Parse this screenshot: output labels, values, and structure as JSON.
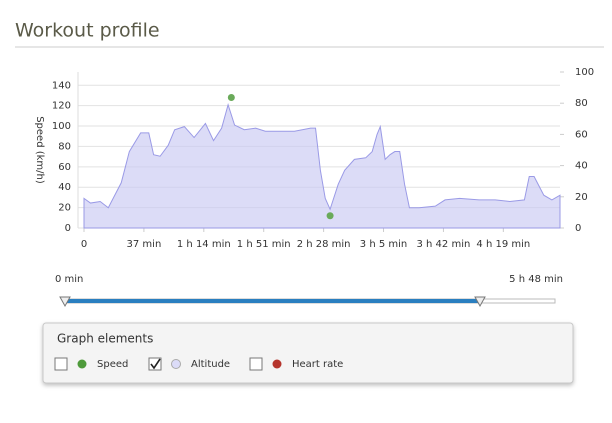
{
  "header": {
    "title": "Workout profile"
  },
  "chart_data": {
    "type": "area",
    "y_label": "Speed (km/h)",
    "x": [
      0,
      4,
      10,
      15,
      19,
      23,
      28,
      35,
      40,
      43,
      47,
      52,
      56,
      62,
      68,
      75,
      80,
      85,
      89,
      93,
      99,
      106,
      112,
      121,
      130,
      140,
      143,
      146,
      149,
      152,
      157,
      161,
      167,
      174,
      178,
      181,
      183,
      186,
      189,
      192,
      195,
      198,
      201,
      207,
      217,
      223,
      232,
      244,
      254,
      263,
      272,
      275,
      278,
      284,
      289,
      294
    ],
    "series": [
      {
        "axis": "y2",
        "color": "#c9c9f3",
        "values": [
          19,
          16,
          17,
          13,
          21,
          29,
          49,
          61,
          61,
          47,
          46,
          53,
          63,
          65,
          58,
          67,
          56,
          64,
          79,
          66,
          63,
          64,
          62,
          62,
          62,
          64,
          64,
          37,
          19,
          12,
          28,
          37,
          44,
          45,
          49,
          60,
          65,
          44,
          47,
          49,
          49,
          28,
          13,
          13,
          14,
          18,
          19,
          18,
          18,
          17,
          18,
          33,
          33,
          21,
          18,
          21
        ]
      }
    ],
    "speed_points": {
      "color": "#6aaa5a",
      "x": [
        91,
        152
      ],
      "values": [
        128,
        12
      ]
    },
    "xlim": [
      0,
      294
    ],
    "xticks": [
      {
        "value": 0,
        "label": "0"
      },
      {
        "value": 37,
        "label": "37 min"
      },
      {
        "value": 74,
        "label": "1 h 14 min"
      },
      {
        "value": 111,
        "label": "1 h 51 min"
      },
      {
        "value": 148,
        "label": "2 h 28 min"
      },
      {
        "value": 185,
        "label": "3 h 5 min"
      },
      {
        "value": 222,
        "label": "3 h 42 min"
      },
      {
        "value": 259,
        "label": "4 h 19 min"
      }
    ],
    "ylim": [
      0,
      153
    ],
    "yticks": [
      0,
      20,
      40,
      60,
      80,
      100,
      120,
      140
    ],
    "y2lim": [
      0,
      100
    ],
    "y2ticks": [
      0,
      20,
      40,
      60,
      80,
      100
    ],
    "grid": true
  },
  "slider": {
    "start_label": "0 min",
    "end_label": "5 h 48 min"
  },
  "graph_elements": {
    "title": "Graph elements",
    "items": [
      {
        "label": "Speed",
        "checked": false,
        "color": "#4e9a3a"
      },
      {
        "label": "Altitude",
        "checked": true,
        "color": "#dcdcf8"
      },
      {
        "label": "Heart rate",
        "checked": false,
        "color": "#b5342c"
      }
    ]
  }
}
